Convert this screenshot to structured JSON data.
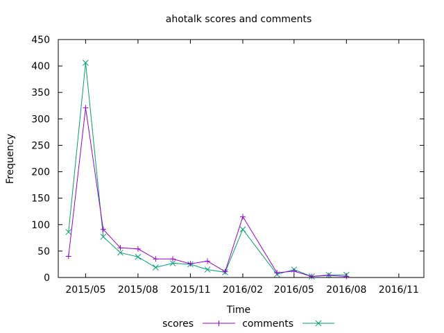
{
  "chart_data": {
    "type": "line",
    "title": "ahotalk scores and comments",
    "xlabel": "Time",
    "ylabel": "Frequency",
    "ylim": [
      0,
      450
    ],
    "yticks": [
      0,
      50,
      100,
      150,
      200,
      250,
      300,
      350,
      400,
      450
    ],
    "xlim": [
      "2015-03-14",
      "2016-12-15"
    ],
    "xticks": [
      {
        "label": "2015/05",
        "date": "2015-05-01"
      },
      {
        "label": "2015/08",
        "date": "2015-08-01"
      },
      {
        "label": "2015/11",
        "date": "2015-11-01"
      },
      {
        "label": "2016/02",
        "date": "2016-02-01"
      },
      {
        "label": "2016/05",
        "date": "2016-05-01"
      },
      {
        "label": "2016/08",
        "date": "2016-08-01"
      },
      {
        "label": "2016/11",
        "date": "2016-11-01"
      }
    ],
    "legend_position": "bottom",
    "grid": false,
    "series": [
      {
        "name": "scores",
        "color": "#9400d3",
        "marker": "plus",
        "points": [
          {
            "x": "2015-04-01",
            "y": 40
          },
          {
            "x": "2015-05-01",
            "y": 321
          },
          {
            "x": "2015-06-01",
            "y": 91
          },
          {
            "x": "2015-07-01",
            "y": 56
          },
          {
            "x": "2015-08-01",
            "y": 54
          },
          {
            "x": "2015-09-01",
            "y": 35
          },
          {
            "x": "2015-10-01",
            "y": 35
          },
          {
            "x": "2015-11-01",
            "y": 26
          },
          {
            "x": "2015-12-01",
            "y": 31
          },
          {
            "x": "2016-01-01",
            "y": 11
          },
          {
            "x": "2016-02-01",
            "y": 115
          },
          {
            "x": "2016-04-01",
            "y": 9
          },
          {
            "x": "2016-05-01",
            "y": 12
          },
          {
            "x": "2016-06-01",
            "y": 2
          },
          {
            "x": "2016-07-01",
            "y": 4
          },
          {
            "x": "2016-08-01",
            "y": 2
          }
        ]
      },
      {
        "name": "comments",
        "color": "#009e73",
        "marker": "cross",
        "points": [
          {
            "x": "2015-04-01",
            "y": 86
          },
          {
            "x": "2015-05-01",
            "y": 406
          },
          {
            "x": "2015-06-01",
            "y": 77
          },
          {
            "x": "2015-07-01",
            "y": 47
          },
          {
            "x": "2015-08-01",
            "y": 39
          },
          {
            "x": "2015-09-01",
            "y": 19
          },
          {
            "x": "2015-10-01",
            "y": 27
          },
          {
            "x": "2015-11-01",
            "y": 25
          },
          {
            "x": "2015-12-01",
            "y": 15
          },
          {
            "x": "2016-01-01",
            "y": 10
          },
          {
            "x": "2016-02-01",
            "y": 91
          },
          {
            "x": "2016-04-01",
            "y": 6
          },
          {
            "x": "2016-05-01",
            "y": 15
          },
          {
            "x": "2016-06-01",
            "y": 2
          },
          {
            "x": "2016-07-01",
            "y": 5
          },
          {
            "x": "2016-08-01",
            "y": 5
          }
        ]
      }
    ]
  }
}
